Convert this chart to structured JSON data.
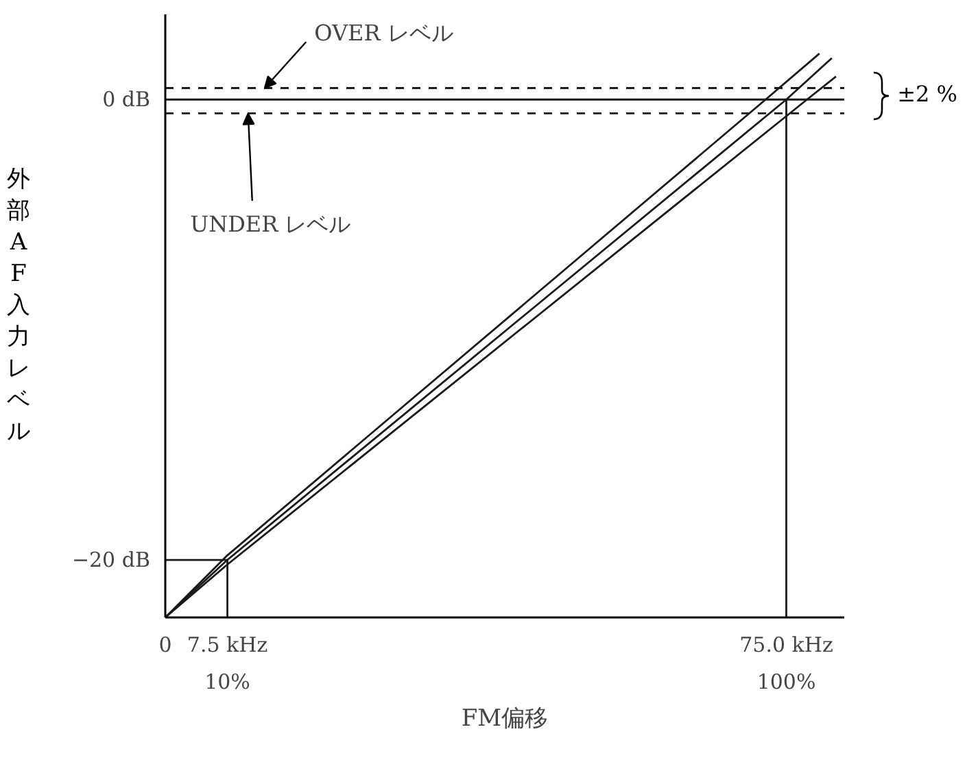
{
  "chart_data": {
    "type": "line",
    "xlabel": "FM偏移",
    "ylabel": "外部AF入力レベル",
    "xlim": [
      0,
      82
    ],
    "ylim": [
      -22.5,
      3.7
    ],
    "xticks": [
      0,
      {
        "value": 7.5,
        "label": "7.5 kHz"
      },
      {
        "value": 75,
        "label": "75.0 kHz"
      }
    ],
    "x2lim": [
      0,
      109.33
    ],
    "x2ticks": [
      {
        "value": 10,
        "label": "10%"
      },
      {
        "value": 100,
        "label": "100%"
      }
    ],
    "yticks": [
      {
        "value": -20,
        "label": "−20 dB"
      },
      {
        "value": 0,
        "label": "0 dB"
      }
    ],
    "series": [
      {
        "color": "#1a1a1a",
        "x": [
          0,
          7.5,
          72.5,
          79
        ],
        "values": [
          -22.5,
          -19.8,
          0,
          2.0
        ]
      },
      {
        "color": "#1a1a1a",
        "x": [
          0,
          7.5,
          75,
          80.5
        ],
        "values": [
          -22.5,
          -20,
          0,
          1.8
        ]
      },
      {
        "color": "#1a1a1a",
        "x": [
          0,
          7.5,
          77.5,
          81
        ],
        "values": [
          -22.5,
          -20.2,
          0,
          1.0
        ]
      },
      {
        "color": "#1a1a1a",
        "x": [
          0,
          7.5,
          7.5
        ],
        "values": [
          -20,
          -20,
          -22.5
        ]
      }
    ],
    "ref_lines": [
      {
        "axis": "y",
        "value": 0.5,
        "line_style": "dashed",
        "color": "#1a1a1a"
      },
      {
        "axis": "y",
        "value": 0,
        "line_style": "solid",
        "color": "#1a1a1a"
      },
      {
        "axis": "y",
        "value": -0.6,
        "line_style": "dashed",
        "color": "#1a1a1a"
      },
      {
        "axis": "x",
        "value": 75,
        "line_style": "solid",
        "color": "#1a1a1a"
      }
    ],
    "annotations": [
      {
        "text": "OVER レベル",
        "x": 12,
        "y": 0.5
      },
      {
        "text": "UNDER レベル",
        "x": 10,
        "y": -0.6
      },
      "±2 %"
    ],
    "grid": false
  }
}
